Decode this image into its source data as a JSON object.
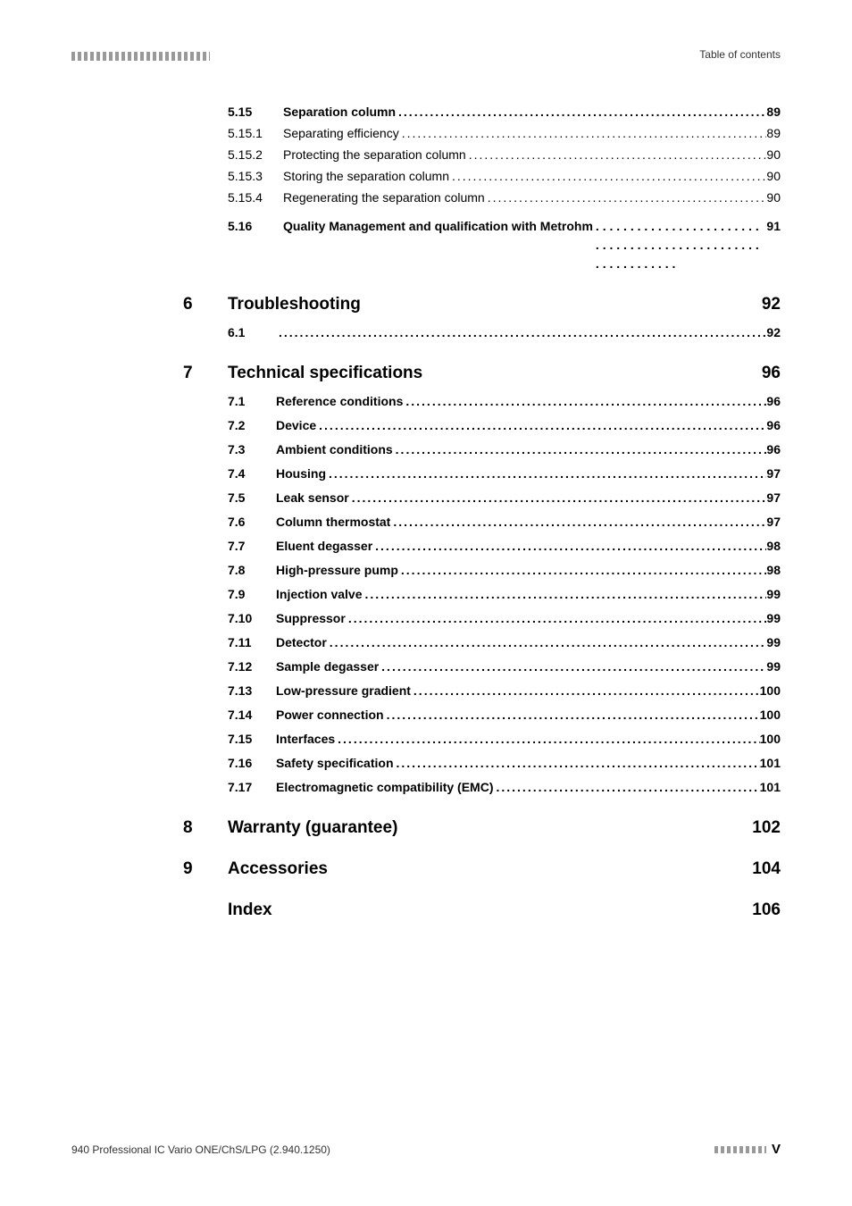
{
  "header": {
    "right": "Table of contents"
  },
  "toc": {
    "section_5_15": {
      "num": "5.15",
      "title": "Separation column",
      "page": "89",
      "subs": [
        {
          "num": "5.15.1",
          "title": "Separating efficiency",
          "page": "89"
        },
        {
          "num": "5.15.2",
          "title": "Protecting the separation column",
          "page": "90"
        },
        {
          "num": "5.15.3",
          "title": "Storing the separation column",
          "page": "90"
        },
        {
          "num": "5.15.4",
          "title": "Regenerating the separation column",
          "page": "90"
        }
      ]
    },
    "section_5_16": {
      "num": "5.16",
      "title": "Quality Management and qualification with Metrohm",
      "page": "91"
    },
    "chapter_6": {
      "num": "6",
      "title": "Troubleshooting",
      "page": "92",
      "sections": [
        {
          "num": "6.1",
          "title": "",
          "page": "92"
        }
      ]
    },
    "chapter_7": {
      "num": "7",
      "title": "Technical specifications",
      "page": "96",
      "sections": [
        {
          "num": "7.1",
          "title": "Reference conditions",
          "page": "96"
        },
        {
          "num": "7.2",
          "title": "Device",
          "page": "96"
        },
        {
          "num": "7.3",
          "title": "Ambient conditions",
          "page": "96"
        },
        {
          "num": "7.4",
          "title": "Housing",
          "page": "97"
        },
        {
          "num": "7.5",
          "title": "Leak sensor",
          "page": "97"
        },
        {
          "num": "7.6",
          "title": "Column thermostat",
          "page": "97"
        },
        {
          "num": "7.7",
          "title": "Eluent degasser",
          "page": "98"
        },
        {
          "num": "7.8",
          "title": "High-pressure pump",
          "page": "98"
        },
        {
          "num": "7.9",
          "title": "Injection valve",
          "page": "99"
        },
        {
          "num": "7.10",
          "title": "Suppressor",
          "page": "99"
        },
        {
          "num": "7.11",
          "title": "Detector",
          "page": "99"
        },
        {
          "num": "7.12",
          "title": "Sample degasser",
          "page": "99"
        },
        {
          "num": "7.13",
          "title": "Low-pressure gradient",
          "page": "100"
        },
        {
          "num": "7.14",
          "title": "Power connection",
          "page": "100"
        },
        {
          "num": "7.15",
          "title": "Interfaces",
          "page": "100"
        },
        {
          "num": "7.16",
          "title": "Safety specification",
          "page": "101"
        },
        {
          "num": "7.17",
          "title": "Electromagnetic compatibility (EMC)",
          "page": "101"
        }
      ]
    },
    "chapter_8": {
      "num": "8",
      "title": "Warranty (guarantee)",
      "page": "102"
    },
    "chapter_9": {
      "num": "9",
      "title": "Accessories",
      "page": "104"
    },
    "index": {
      "title": "Index",
      "page": "106"
    }
  },
  "footer": {
    "left": "940 Professional IC Vario ONE/ChS/LPG (2.940.1250)",
    "page": "V"
  },
  "colors": {
    "text": "#000000",
    "bar": "#999999",
    "bg": "#ffffff"
  }
}
